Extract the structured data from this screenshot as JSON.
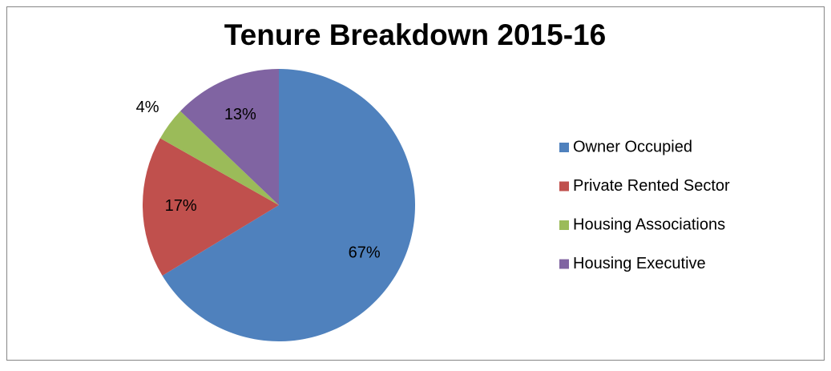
{
  "chart_data": {
    "type": "pie",
    "title": "Tenure Breakdown 2015-16",
    "categories": [
      "Owner Occupied",
      "Private Rented Sector",
      "Housing Associations",
      "Housing Executive"
    ],
    "values": [
      67,
      17,
      4,
      13
    ],
    "value_labels": [
      "67%",
      "17%",
      "4%",
      "13%"
    ],
    "colors": [
      "#4f81bd",
      "#c0504d",
      "#9bbb59",
      "#8064a2"
    ],
    "legend": "right"
  }
}
